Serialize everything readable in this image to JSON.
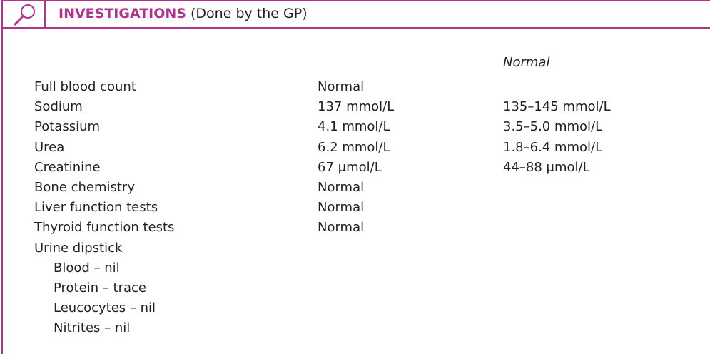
{
  "header": {
    "title": "INVESTIGATIONS",
    "subtitle": "(Done by the GP)"
  },
  "table": {
    "normal_heading": "Normal",
    "rows": [
      [
        "Full blood count",
        "Normal"
      ],
      [
        "Sodium",
        "137 mmol/L",
        "135–145 mmol/L"
      ],
      [
        "Potassium",
        "4.1 mmol/L",
        "3.5–5.0 mmol/L"
      ],
      [
        "Urea",
        "6.2 mmol/L",
        "1.8–6.4 mmol/L"
      ],
      [
        "Creatinine",
        "67 μmol/L",
        "44–88 μmol/L"
      ],
      [
        "Bone chemistry",
        "Normal"
      ],
      [
        "Liver function tests",
        "Normal"
      ],
      [
        "Thyroid function tests",
        "Normal"
      ],
      [
        "Urine dipstick"
      ]
    ],
    "dipstick_items": [
      "Blood – nil",
      "Protein – trace",
      "Leucocytes – nil",
      "Nitrites – nil"
    ]
  }
}
